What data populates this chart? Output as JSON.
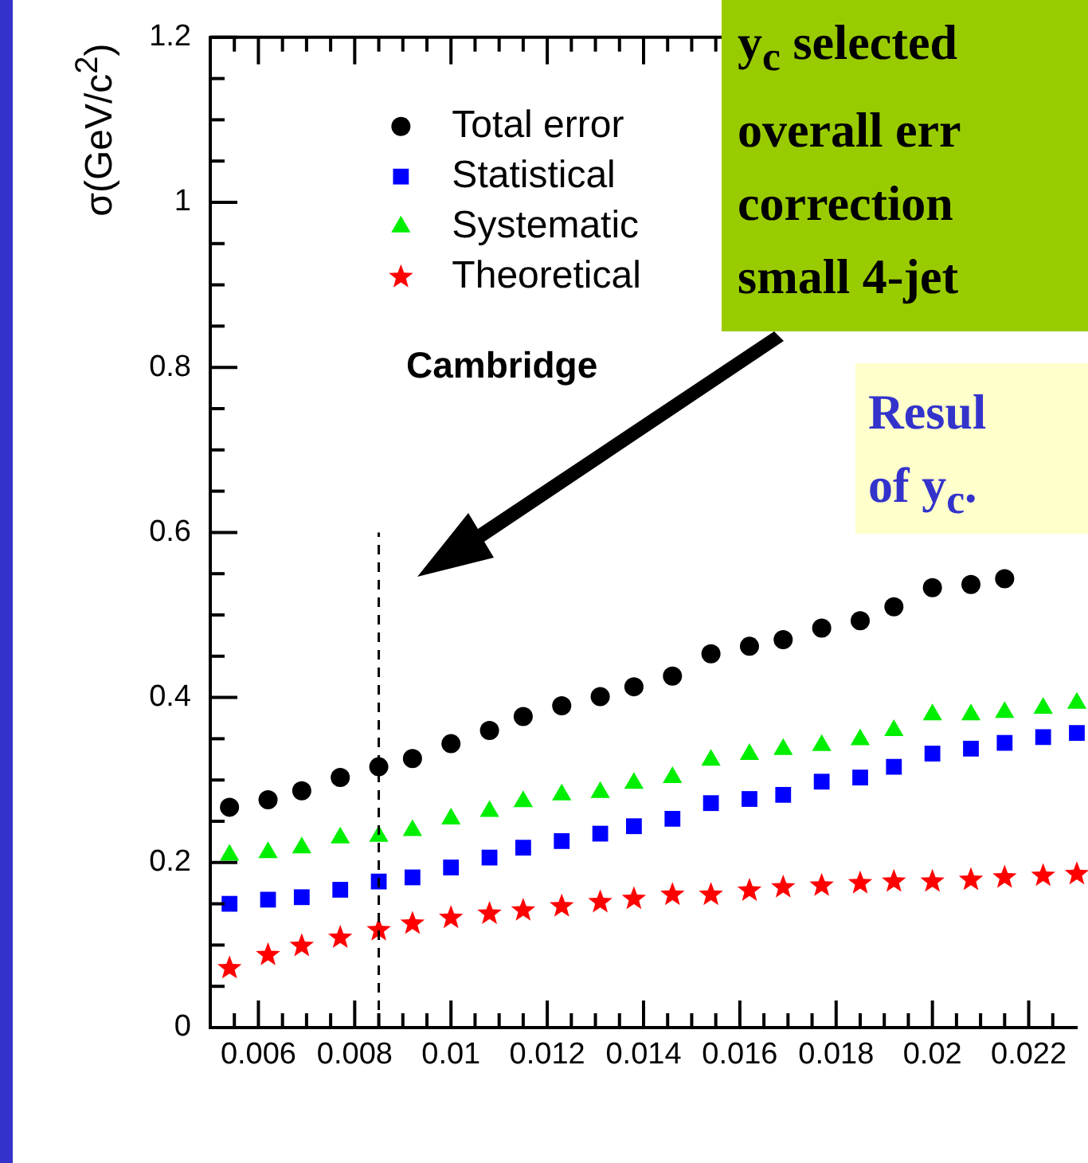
{
  "chart_data": {
    "type": "scatter",
    "ylabel": "σ(GeV/c$^{2}$)",
    "x": [
      0.0054,
      0.0062,
      0.0069,
      0.0077,
      0.0085,
      0.0092,
      0.01,
      0.0108,
      0.0115,
      0.0123,
      0.0131,
      0.0138,
      0.0146,
      0.0154,
      0.0162,
      0.0169,
      0.0177,
      0.0185,
      0.0192,
      0.02,
      0.0208,
      0.0215,
      0.0223,
      0.023
    ],
    "series": [
      {
        "name": "Total error",
        "color": "#000000",
        "marker": "circle",
        "values": [
          0.267,
          0.276,
          0.287,
          0.303,
          0.316,
          0.326,
          0.344,
          0.36,
          0.377,
          0.39,
          0.401,
          0.413,
          0.426,
          0.453,
          0.462,
          0.47,
          0.484,
          0.493,
          0.51,
          0.533,
          0.537,
          0.544,
          null,
          null
        ]
      },
      {
        "name": "Statistical",
        "color": "#0000ff",
        "marker": "square",
        "values": [
          0.15,
          0.155,
          0.158,
          0.167,
          0.177,
          0.182,
          0.194,
          0.206,
          0.218,
          0.226,
          0.235,
          0.244,
          0.253,
          0.272,
          0.277,
          0.282,
          0.298,
          0.303,
          0.316,
          0.332,
          0.338,
          0.345,
          0.352,
          0.357
        ]
      },
      {
        "name": "Systematic",
        "color": "#00ee00",
        "marker": "triangle",
        "values": [
          0.209,
          0.212,
          0.218,
          0.23,
          0.232,
          0.239,
          0.253,
          0.262,
          0.274,
          0.282,
          0.285,
          0.296,
          0.303,
          0.324,
          0.331,
          0.337,
          0.342,
          0.349,
          0.36,
          0.379,
          0.379,
          0.382,
          0.387,
          0.393
        ]
      },
      {
        "name": "Theoretical",
        "color": "#ff0000",
        "marker": "star",
        "values": [
          0.072,
          0.088,
          0.099,
          0.109,
          0.118,
          0.126,
          0.133,
          0.138,
          0.142,
          0.147,
          0.152,
          0.156,
          0.161,
          0.161,
          0.166,
          0.17,
          0.172,
          0.175,
          0.177,
          0.177,
          0.179,
          0.182,
          0.184,
          0.186
        ]
      }
    ],
    "xlim": [
      0.005,
      0.023
    ],
    "xticks": [
      {
        "value": 0.0055,
        "label": null
      },
      0.006,
      {
        "value": 0.0065,
        "label": null
      },
      {
        "value": 0.007,
        "label": null
      },
      {
        "value": 0.0075,
        "label": null
      },
      0.008,
      {
        "value": 0.0085,
        "label": null
      },
      {
        "value": 0.009,
        "label": null
      },
      {
        "value": 0.0095,
        "label": null
      },
      0.01,
      {
        "value": 0.0105,
        "label": null
      },
      {
        "value": 0.011,
        "label": null
      },
      {
        "value": 0.0115,
        "label": null
      },
      0.012,
      {
        "value": 0.0125,
        "label": null
      },
      {
        "value": 0.013,
        "label": null
      },
      {
        "value": 0.0135,
        "label": null
      },
      0.014,
      {
        "value": 0.0145,
        "label": null
      },
      {
        "value": 0.015,
        "label": null
      },
      {
        "value": 0.0155,
        "label": null
      },
      0.016,
      {
        "value": 0.0165,
        "label": null
      },
      {
        "value": 0.017,
        "label": null
      },
      {
        "value": 0.0175,
        "label": null
      },
      0.018,
      {
        "value": 0.0185,
        "label": null
      },
      {
        "value": 0.019,
        "label": null
      },
      {
        "value": 0.0195,
        "label": null
      },
      0.02,
      {
        "value": 0.0205,
        "label": null
      },
      {
        "value": 0.021,
        "label": null
      },
      {
        "value": 0.0215,
        "label": null
      },
      0.022,
      {
        "value": 0.0225,
        "label": null
      }
    ],
    "ylim": [
      0,
      1.2
    ],
    "yticks": [
      0,
      {
        "value": 0.05,
        "label": null
      },
      {
        "value": 0.1,
        "label": null
      },
      {
        "value": 0.15,
        "label": null
      },
      0.2,
      {
        "value": 0.25,
        "label": null
      },
      {
        "value": 0.3,
        "label": null
      },
      {
        "value": 0.35,
        "label": null
      },
      0.4,
      {
        "value": 0.45,
        "label": null
      },
      {
        "value": 0.5,
        "label": null
      },
      {
        "value": 0.55,
        "label": null
      },
      0.6,
      {
        "value": 0.65,
        "label": null
      },
      {
        "value": 0.7,
        "label": null
      },
      {
        "value": 0.75,
        "label": null
      },
      0.8,
      {
        "value": 0.85,
        "label": null
      },
      {
        "value": 0.9,
        "label": null
      },
      {
        "value": 0.95,
        "label": null
      },
      1,
      {
        "value": 1.05,
        "label": null
      },
      {
        "value": 1.1,
        "label": null
      },
      {
        "value": 1.15,
        "label": null
      },
      1.2
    ],
    "ref_lines": [
      {
        "axis": "x",
        "value": 0.0085,
        "line_style": "dashed",
        "color": "#000000"
      }
    ],
    "legend": "top left",
    "grid": false,
    "annotations": [
      "Cambridge",
      "y$_{c}$ selected\noverall err\ncorrection\nsmall 4-jet",
      "Resul\nof y$_{c}$."
    ]
  }
}
